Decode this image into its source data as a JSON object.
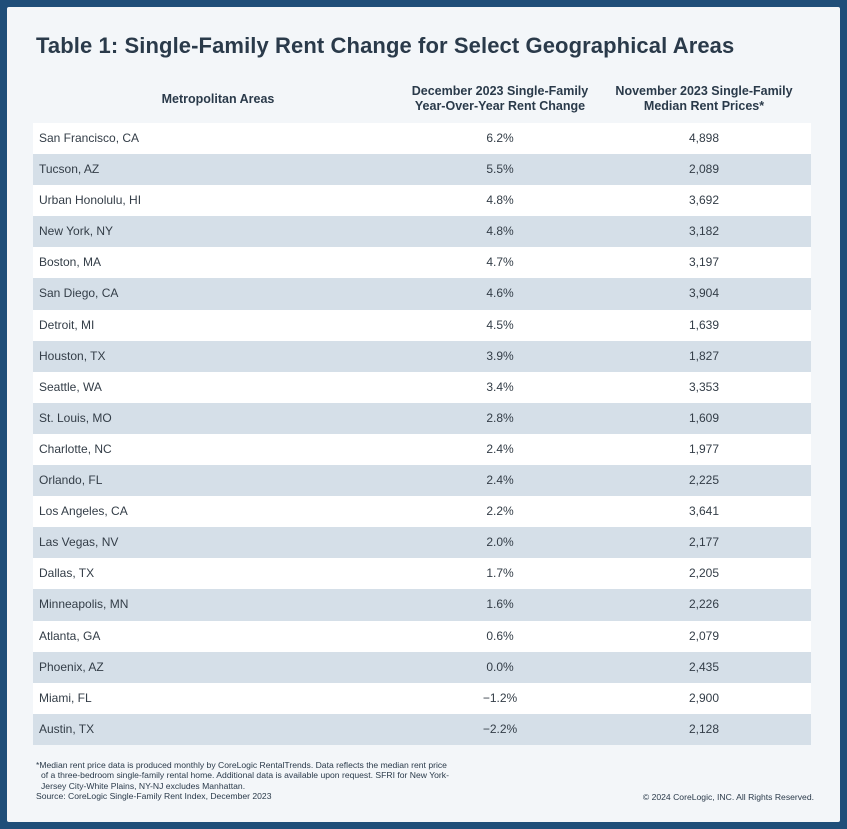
{
  "title": "Table 1: Single-Family Rent Change for Select Geographical Areas",
  "table": {
    "columns": [
      "Metropolitan Areas",
      "December 2023 Single-Family Year-Over-Year Rent Change",
      "November 2023 Single-Family Median Rent Prices*"
    ],
    "rows": [
      {
        "area": "San Francisco, CA",
        "change": "6.2%",
        "rent": "4,898"
      },
      {
        "area": "Tucson, AZ",
        "change": "5.5%",
        "rent": "2,089"
      },
      {
        "area": "Urban Honolulu, HI",
        "change": "4.8%",
        "rent": "3,692"
      },
      {
        "area": "New York, NY",
        "change": "4.8%",
        "rent": "3,182"
      },
      {
        "area": "Boston, MA",
        "change": "4.7%",
        "rent": "3,197"
      },
      {
        "area": "San Diego, CA",
        "change": "4.6%",
        "rent": "3,904"
      },
      {
        "area": "Detroit, MI",
        "change": "4.5%",
        "rent": "1,639"
      },
      {
        "area": "Houston, TX",
        "change": "3.9%",
        "rent": "1,827"
      },
      {
        "area": "Seattle, WA",
        "change": "3.4%",
        "rent": "3,353"
      },
      {
        "area": "St. Louis, MO",
        "change": "2.8%",
        "rent": "1,609"
      },
      {
        "area": "Charlotte, NC",
        "change": "2.4%",
        "rent": "1,977"
      },
      {
        "area": "Orlando, FL",
        "change": "2.4%",
        "rent": "2,225"
      },
      {
        "area": "Los Angeles, CA",
        "change": "2.2%",
        "rent": "3,641"
      },
      {
        "area": "Las Vegas, NV",
        "change": "2.0%",
        "rent": "2,177"
      },
      {
        "area": "Dallas, TX",
        "change": "1.7%",
        "rent": "2,205"
      },
      {
        "area": "Minneapolis, MN",
        "change": "1.6%",
        "rent": "2,226"
      },
      {
        "area": "Atlanta, GA",
        "change": "0.6%",
        "rent": "2,079"
      },
      {
        "area": "Phoenix, AZ",
        "change": "0.0%",
        "rent": "2,435"
      },
      {
        "area": "Miami, FL",
        "change": "−1.2%",
        "rent": "2,900"
      },
      {
        "area": "Austin, TX",
        "change": "−2.2%",
        "rent": "2,128"
      }
    ]
  },
  "footnote": {
    "lines": [
      "*Median rent price data is produced monthly by CoreLogic RentalTrends. Data reflects the median rent price",
      "of a three-bedroom single-family rental home. Additional data is available upon request. SFRI for New York-",
      "Jersey City-White Plains, NY-NJ excludes Manhattan.",
      "Source: CoreLogic Single-Family Rent Index, December 2023"
    ],
    "copyright": "© 2024 CoreLogic, INC. All Rights Reserved."
  },
  "colors": {
    "frame": "#1f4e79",
    "card": "#f3f6f9",
    "row_odd": "#ffffff",
    "row_even": "#d5dfe8",
    "text": "#2a3a4a"
  }
}
